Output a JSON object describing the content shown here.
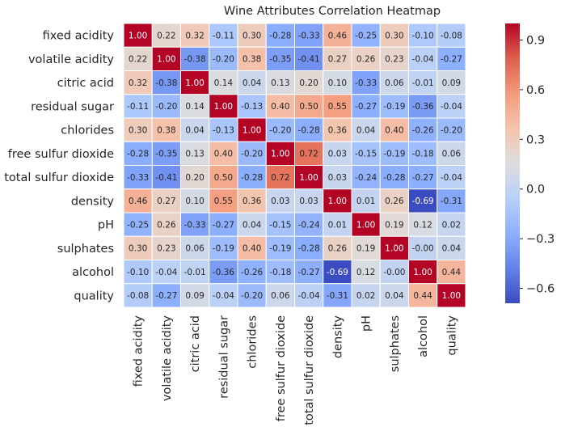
{
  "chart_data": {
    "type": "heatmap",
    "title": "Wine Attributes Correlation Heatmap",
    "xlabel": "",
    "ylabel": "",
    "labels": [
      "fixed acidity",
      "volatile acidity",
      "citric acid",
      "residual sugar",
      "chlorides",
      "free sulfur dioxide",
      "total sulfur dioxide",
      "density",
      "pH",
      "sulphates",
      "alcohol",
      "quality"
    ],
    "values": [
      [
        1.0,
        0.22,
        0.32,
        -0.11,
        0.3,
        -0.28,
        -0.33,
        0.46,
        -0.25,
        0.3,
        -0.1,
        -0.08
      ],
      [
        0.22,
        1.0,
        -0.38,
        -0.2,
        0.38,
        -0.35,
        -0.41,
        0.27,
        0.26,
        0.23,
        -0.04,
        -0.27
      ],
      [
        0.32,
        -0.38,
        1.0,
        0.14,
        0.04,
        0.13,
        0.2,
        0.1,
        -0.33,
        0.06,
        -0.01,
        0.09
      ],
      [
        -0.11,
        -0.2,
        0.14,
        1.0,
        -0.13,
        0.4,
        0.5,
        0.55,
        -0.27,
        -0.19,
        -0.36,
        -0.04
      ],
      [
        0.3,
        0.38,
        0.04,
        -0.13,
        1.0,
        -0.2,
        -0.28,
        0.36,
        0.04,
        0.4,
        -0.26,
        -0.2
      ],
      [
        -0.28,
        -0.35,
        0.13,
        0.4,
        -0.2,
        1.0,
        0.72,
        0.03,
        -0.15,
        -0.19,
        -0.18,
        0.06
      ],
      [
        -0.33,
        -0.41,
        0.2,
        0.5,
        -0.28,
        0.72,
        1.0,
        0.03,
        -0.24,
        -0.28,
        -0.27,
        -0.04
      ],
      [
        0.46,
        0.27,
        0.1,
        0.55,
        0.36,
        0.03,
        0.03,
        1.0,
        0.01,
        0.26,
        -0.69,
        -0.31
      ],
      [
        -0.25,
        0.26,
        -0.33,
        -0.27,
        0.04,
        -0.15,
        -0.24,
        0.01,
        1.0,
        0.19,
        0.12,
        0.02
      ],
      [
        0.3,
        0.23,
        0.06,
        -0.19,
        0.4,
        -0.19,
        -0.28,
        0.26,
        0.19,
        1.0,
        -0.0,
        0.04
      ],
      [
        -0.1,
        -0.04,
        -0.01,
        -0.36,
        -0.26,
        -0.18,
        -0.27,
        -0.69,
        0.12,
        -0.0,
        1.0,
        0.44
      ],
      [
        -0.08,
        -0.27,
        0.09,
        -0.04,
        -0.2,
        0.06,
        -0.04,
        -0.31,
        0.02,
        0.04,
        0.44,
        1.0
      ]
    ],
    "cell_labels": [
      [
        "1.00",
        "0.22",
        "0.32",
        "-0.11",
        "0.30",
        "-0.28",
        "-0.33",
        "0.46",
        "-0.25",
        "0.30",
        "-0.10",
        "-0.08"
      ],
      [
        "0.22",
        "1.00",
        "-0.38",
        "-0.20",
        "0.38",
        "-0.35",
        "-0.41",
        "0.27",
        "0.26",
        "0.23",
        "-0.04",
        "-0.27"
      ],
      [
        "0.32",
        "-0.38",
        "1.00",
        "0.14",
        "0.04",
        "0.13",
        "0.20",
        "0.10",
        "-0.33",
        "0.06",
        "-0.01",
        "0.09"
      ],
      [
        "-0.11",
        "-0.20",
        "0.14",
        "1.00",
        "-0.13",
        "0.40",
        "0.50",
        "0.55",
        "-0.27",
        "-0.19",
        "-0.36",
        "-0.04"
      ],
      [
        "0.30",
        "0.38",
        "0.04",
        "-0.13",
        "1.00",
        "-0.20",
        "-0.28",
        "0.36",
        "0.04",
        "0.40",
        "-0.26",
        "-0.20"
      ],
      [
        "-0.28",
        "-0.35",
        "0.13",
        "0.40",
        "-0.20",
        "1.00",
        "0.72",
        "0.03",
        "-0.15",
        "-0.19",
        "-0.18",
        "0.06"
      ],
      [
        "-0.33",
        "-0.41",
        "0.20",
        "0.50",
        "-0.28",
        "0.72",
        "1.00",
        "0.03",
        "-0.24",
        "-0.28",
        "-0.27",
        "-0.04"
      ],
      [
        "0.46",
        "0.27",
        "0.10",
        "0.55",
        "0.36",
        "0.03",
        "0.03",
        "1.00",
        "0.01",
        "0.26",
        "-0.69",
        "-0.31"
      ],
      [
        "-0.25",
        "0.26",
        "-0.33",
        "-0.27",
        "0.04",
        "-0.15",
        "-0.24",
        "0.01",
        "1.00",
        "0.19",
        "0.12",
        "0.02"
      ],
      [
        "0.30",
        "0.23",
        "0.06",
        "-0.19",
        "0.40",
        "-0.19",
        "-0.28",
        "0.26",
        "0.19",
        "1.00",
        "-0.00",
        "0.04"
      ],
      [
        "-0.10",
        "-0.04",
        "-0.01",
        "-0.36",
        "-0.26",
        "-0.18",
        "-0.27",
        "-0.69",
        "0.12",
        "-0.00",
        "1.00",
        "0.44"
      ],
      [
        "-0.08",
        "-0.27",
        "0.09",
        "-0.04",
        "-0.20",
        "0.06",
        "-0.04",
        "-0.31",
        "0.02",
        "0.04",
        "0.44",
        "1.00"
      ]
    ],
    "colormap": "coolwarm",
    "vmin": -0.69,
    "vmax": 1.0,
    "colorbar_ticks": [
      0.9,
      0.6,
      0.3,
      0.0,
      -0.3,
      -0.6
    ],
    "colorbar_tick_labels": [
      "0.9",
      "0.6",
      "0.3",
      "0.0",
      "−0.3",
      "−0.6"
    ],
    "cell_border_color": "#ffffff",
    "text_color_dark": "#262626",
    "text_color_light": "#ffffff"
  }
}
